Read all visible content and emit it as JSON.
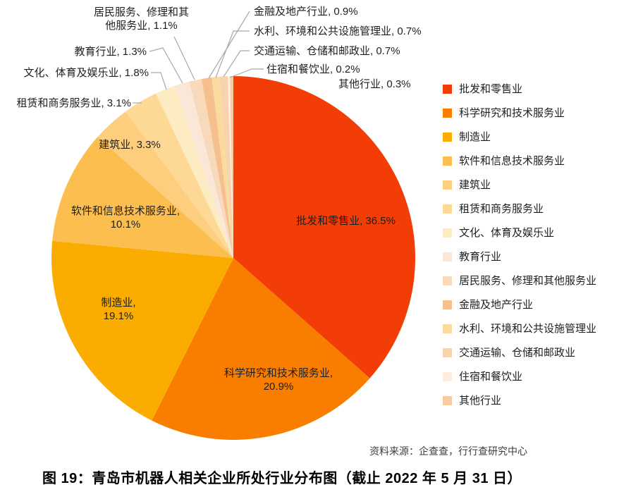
{
  "chart_data": {
    "type": "pie",
    "title": "图 19：青岛市机器人相关企业所处行业分布图（截止 2022 年 5 月 31 日）",
    "source": "资料来源：企查查，行行查研究中心",
    "legend_position": "right",
    "start_angle_deg": 0,
    "direction": "clockwise",
    "slices": [
      {
        "name": "批发和零售业",
        "value": 36.5,
        "color": "#F23D07"
      },
      {
        "name": "科学研究和技术服务业",
        "value": 20.9,
        "color": "#F97E00"
      },
      {
        "name": "制造业",
        "value": 19.1,
        "color": "#FBAC00"
      },
      {
        "name": "软件和信息技术服务业",
        "value": 10.1,
        "color": "#FCBE4E"
      },
      {
        "name": "建筑业",
        "value": 3.3,
        "color": "#FCCE7D"
      },
      {
        "name": "租赁和商务服务业",
        "value": 3.1,
        "color": "#FDD995"
      },
      {
        "name": "文化、体育及娱乐业",
        "value": 1.8,
        "color": "#FDEBC2"
      },
      {
        "name": "教育行业",
        "value": 1.3,
        "color": "#FAE7D7"
      },
      {
        "name": "居民服务、修理和其他服务业",
        "value": 1.1,
        "color": "#F9D9BC"
      },
      {
        "name": "金融及地产行业",
        "value": 0.9,
        "color": "#F5C08D"
      },
      {
        "name": "水利、环境和公共设施管理业",
        "value": 0.7,
        "color": "#FBDB9D"
      },
      {
        "name": "交通运输、仓储和邮政业",
        "value": 0.7,
        "color": "#F9D2AE"
      },
      {
        "name": "住宿和餐饮业",
        "value": 0.2,
        "color": "#FDECDD"
      },
      {
        "name": "其他行业",
        "value": 0.3,
        "color": "#F7CCA3"
      }
    ]
  },
  "labels": {
    "wholesale": "批发和零售业, 36.5%",
    "science_l1": "科学研究和技术服务业,",
    "science_l2": "20.9%",
    "manufacturing_l1": "制造业,",
    "manufacturing_l2": "19.1%",
    "software_l1": "软件和信息技术服务业,",
    "software_l2": "10.1%",
    "construction": "建筑业, 3.3%",
    "leasing": "租赁和商务服务业, 3.1%",
    "culture": "文化、体育及娱乐业, 1.8%",
    "education": "教育行业, 1.3%",
    "resident_l1": "居民服务、修理和其",
    "resident_l2": "他服务业, 1.1%",
    "finance": "金融及地产行业, 0.9%",
    "water": "水利、环境和公共设施管理业, 0.7%",
    "transport": "交通运输、仓储和邮政业, 0.7%",
    "lodging": "住宿和餐饮业, 0.2%",
    "other": "其他行业, 0.3%"
  },
  "colors": {
    "leader_line": "#A9A9A9",
    "label_text": "#1f1f1f",
    "background": "#ffffff"
  }
}
